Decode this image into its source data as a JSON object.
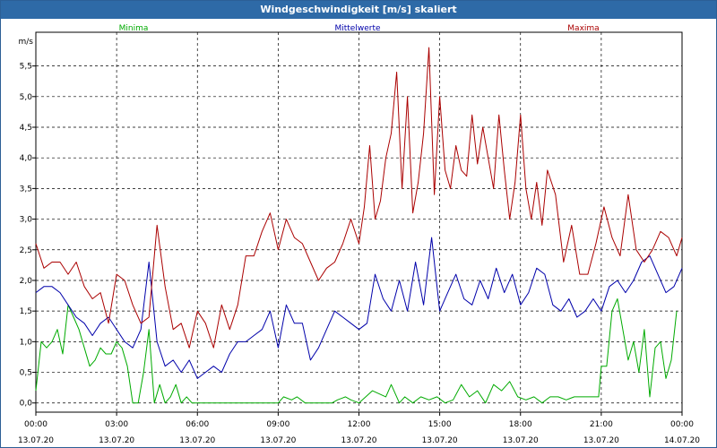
{
  "window": {
    "title": "Windgeschwindigkeit [m/s] skaliert"
  },
  "chart_data": {
    "type": "line",
    "title": "Windgeschwindigkeit [m/s] skaliert",
    "ylabel": "m/s",
    "ylim": [
      -0.15,
      6.05
    ],
    "xlim": [
      0,
      24
    ],
    "yticks": [
      "0,0",
      "0,5",
      "1,0",
      "1,5",
      "2,0",
      "2,5",
      "3,0",
      "3,5",
      "4,0",
      "4,5",
      "5,0",
      "5,5"
    ],
    "xticks": [
      {
        "time": "00:00",
        "date": "13.07.20"
      },
      {
        "time": "03:00",
        "date": "13.07.20"
      },
      {
        "time": "06:00",
        "date": "13.07.20"
      },
      {
        "time": "09:00",
        "date": "13.07.20"
      },
      {
        "time": "12:00",
        "date": "13.07.20"
      },
      {
        "time": "15:00",
        "date": "13.07.20"
      },
      {
        "time": "18:00",
        "date": "13.07.20"
      },
      {
        "time": "21:00",
        "date": "13.07.20"
      },
      {
        "time": "00:00",
        "date": "14.07.20"
      }
    ],
    "grid": true,
    "legend_position": "top",
    "series": [
      {
        "name": "Minima",
        "color": "#00aa00",
        "x": [
          0,
          0.2,
          0.4,
          0.6,
          0.8,
          1.0,
          1.2,
          1.4,
          1.6,
          1.8,
          2.0,
          2.2,
          2.4,
          2.6,
          2.8,
          3.0,
          3.2,
          3.4,
          3.6,
          3.8,
          4.0,
          4.2,
          4.4,
          4.6,
          4.8,
          5.0,
          5.2,
          5.4,
          5.6,
          5.8,
          6.0,
          6.2,
          6.5,
          7,
          8,
          9,
          9.2,
          9.5,
          9.7,
          10,
          10.5,
          11,
          11.2,
          11.5,
          11.7,
          12,
          12.5,
          13,
          13.2,
          13.5,
          13.7,
          14,
          14.3,
          14.6,
          14.9,
          15.2,
          15.5,
          15.8,
          16.1,
          16.4,
          16.7,
          17,
          17.3,
          17.6,
          17.9,
          18.2,
          18.5,
          18.8,
          19.1,
          19.4,
          19.7,
          20,
          20.3,
          20.6,
          20.9,
          21,
          21.2,
          21.4,
          21.6,
          21.8,
          22,
          22.2,
          22.4,
          22.6,
          22.8,
          23,
          23.2,
          23.4,
          23.6,
          23.8
        ],
        "values": [
          0.2,
          1.0,
          0.9,
          1.0,
          1.2,
          0.8,
          1.6,
          1.4,
          1.2,
          0.9,
          0.6,
          0.7,
          0.9,
          0.8,
          0.8,
          1.0,
          0.9,
          0.6,
          0.0,
          0.0,
          0.5,
          1.2,
          0.0,
          0.3,
          0.0,
          0.1,
          0.3,
          0.0,
          0.1,
          0.0,
          0.0,
          0.0,
          0.0,
          0.0,
          0.0,
          0.0,
          0.1,
          0.05,
          0.1,
          0.0,
          0.0,
          0.0,
          0.05,
          0.1,
          0.05,
          0.0,
          0.2,
          0.1,
          0.3,
          0.0,
          0.1,
          0.0,
          0.1,
          0.05,
          0.1,
          0.0,
          0.05,
          0.3,
          0.1,
          0.2,
          0.0,
          0.3,
          0.2,
          0.35,
          0.1,
          0.05,
          0.1,
          0.0,
          0.1,
          0.1,
          0.05,
          0.1,
          0.1,
          0.1,
          0.1,
          0.6,
          0.6,
          1.5,
          1.7,
          1.2,
          0.7,
          1.0,
          0.5,
          1.2,
          0.1,
          0.9,
          1.0,
          0.4,
          0.7,
          1.5
        ]
      },
      {
        "name": "Mittelwerte",
        "color": "#0000aa",
        "x": [
          0,
          0.3,
          0.6,
          0.9,
          1.2,
          1.5,
          1.8,
          2.1,
          2.4,
          2.7,
          3.0,
          3.3,
          3.6,
          3.9,
          4.2,
          4.5,
          4.8,
          5.1,
          5.4,
          5.7,
          6.0,
          6.3,
          6.6,
          6.9,
          7.2,
          7.5,
          7.8,
          8.1,
          8.4,
          8.7,
          9.0,
          9.3,
          9.6,
          9.9,
          10.2,
          10.5,
          10.8,
          11.1,
          11.4,
          11.7,
          12.0,
          12.3,
          12.6,
          12.9,
          13.2,
          13.5,
          13.8,
          14.1,
          14.4,
          14.7,
          15.0,
          15.3,
          15.6,
          15.9,
          16.2,
          16.5,
          16.8,
          17.1,
          17.4,
          17.7,
          18.0,
          18.3,
          18.6,
          18.9,
          19.2,
          19.5,
          19.8,
          20.1,
          20.4,
          20.7,
          21.0,
          21.3,
          21.6,
          21.9,
          22.2,
          22.5,
          22.8,
          23.1,
          23.4,
          23.7,
          24.0
        ],
        "values": [
          1.8,
          1.9,
          1.9,
          1.8,
          1.6,
          1.4,
          1.3,
          1.1,
          1.3,
          1.4,
          1.2,
          1.0,
          0.9,
          1.2,
          2.3,
          1.0,
          0.6,
          0.7,
          0.5,
          0.7,
          0.4,
          0.5,
          0.6,
          0.5,
          0.8,
          1.0,
          1.0,
          1.1,
          1.2,
          1.5,
          0.9,
          1.6,
          1.3,
          1.3,
          0.7,
          0.9,
          1.2,
          1.5,
          1.4,
          1.3,
          1.2,
          1.3,
          2.1,
          1.7,
          1.5,
          2.0,
          1.5,
          2.3,
          1.6,
          2.7,
          1.5,
          1.8,
          2.1,
          1.7,
          1.6,
          2.0,
          1.7,
          2.2,
          1.8,
          2.1,
          1.6,
          1.8,
          2.2,
          2.1,
          1.6,
          1.5,
          1.7,
          1.4,
          1.5,
          1.7,
          1.5,
          1.9,
          2.0,
          1.8,
          2.0,
          2.3,
          2.4,
          2.1,
          1.8,
          1.9,
          2.2
        ]
      },
      {
        "name": "Maxima",
        "color": "#aa0000",
        "x": [
          0,
          0.3,
          0.6,
          0.9,
          1.2,
          1.5,
          1.8,
          2.1,
          2.4,
          2.7,
          3.0,
          3.3,
          3.6,
          3.9,
          4.2,
          4.5,
          4.8,
          5.1,
          5.4,
          5.7,
          6.0,
          6.3,
          6.6,
          6.9,
          7.2,
          7.5,
          7.8,
          8.1,
          8.4,
          8.7,
          9.0,
          9.3,
          9.6,
          9.9,
          10.2,
          10.5,
          10.8,
          11.1,
          11.4,
          11.7,
          12.0,
          12.2,
          12.4,
          12.6,
          12.8,
          13.0,
          13.2,
          13.4,
          13.6,
          13.8,
          14.0,
          14.2,
          14.4,
          14.6,
          14.8,
          15.0,
          15.2,
          15.4,
          15.6,
          15.8,
          16.0,
          16.2,
          16.4,
          16.6,
          16.8,
          17.0,
          17.2,
          17.4,
          17.6,
          17.8,
          18.0,
          18.2,
          18.4,
          18.6,
          18.8,
          19.0,
          19.3,
          19.6,
          19.9,
          20.2,
          20.5,
          20.8,
          21.1,
          21.4,
          21.7,
          22.0,
          22.3,
          22.6,
          22.9,
          23.2,
          23.5,
          23.8,
          24.0
        ],
        "values": [
          2.6,
          2.2,
          2.3,
          2.3,
          2.1,
          2.3,
          1.9,
          1.7,
          1.8,
          1.3,
          2.1,
          2.0,
          1.6,
          1.3,
          1.4,
          2.9,
          1.9,
          1.2,
          1.3,
          0.9,
          1.5,
          1.3,
          0.9,
          1.6,
          1.2,
          1.6,
          2.4,
          2.4,
          2.8,
          3.1,
          2.5,
          3.0,
          2.7,
          2.6,
          2.3,
          2.0,
          2.2,
          2.3,
          2.6,
          3.0,
          2.6,
          3.2,
          4.2,
          3.0,
          3.3,
          4.0,
          4.4,
          5.4,
          3.5,
          5.0,
          3.1,
          3.6,
          4.4,
          5.8,
          3.4,
          5.0,
          3.8,
          3.5,
          4.2,
          3.8,
          3.7,
          4.7,
          3.9,
          4.5,
          4.0,
          3.5,
          4.7,
          3.8,
          3.0,
          3.6,
          4.7,
          3.5,
          3.0,
          3.6,
          2.9,
          3.8,
          3.4,
          2.3,
          2.9,
          2.1,
          2.1,
          2.6,
          3.2,
          2.7,
          2.4,
          3.4,
          2.5,
          2.3,
          2.5,
          2.8,
          2.7,
          2.4,
          2.7
        ]
      }
    ]
  }
}
